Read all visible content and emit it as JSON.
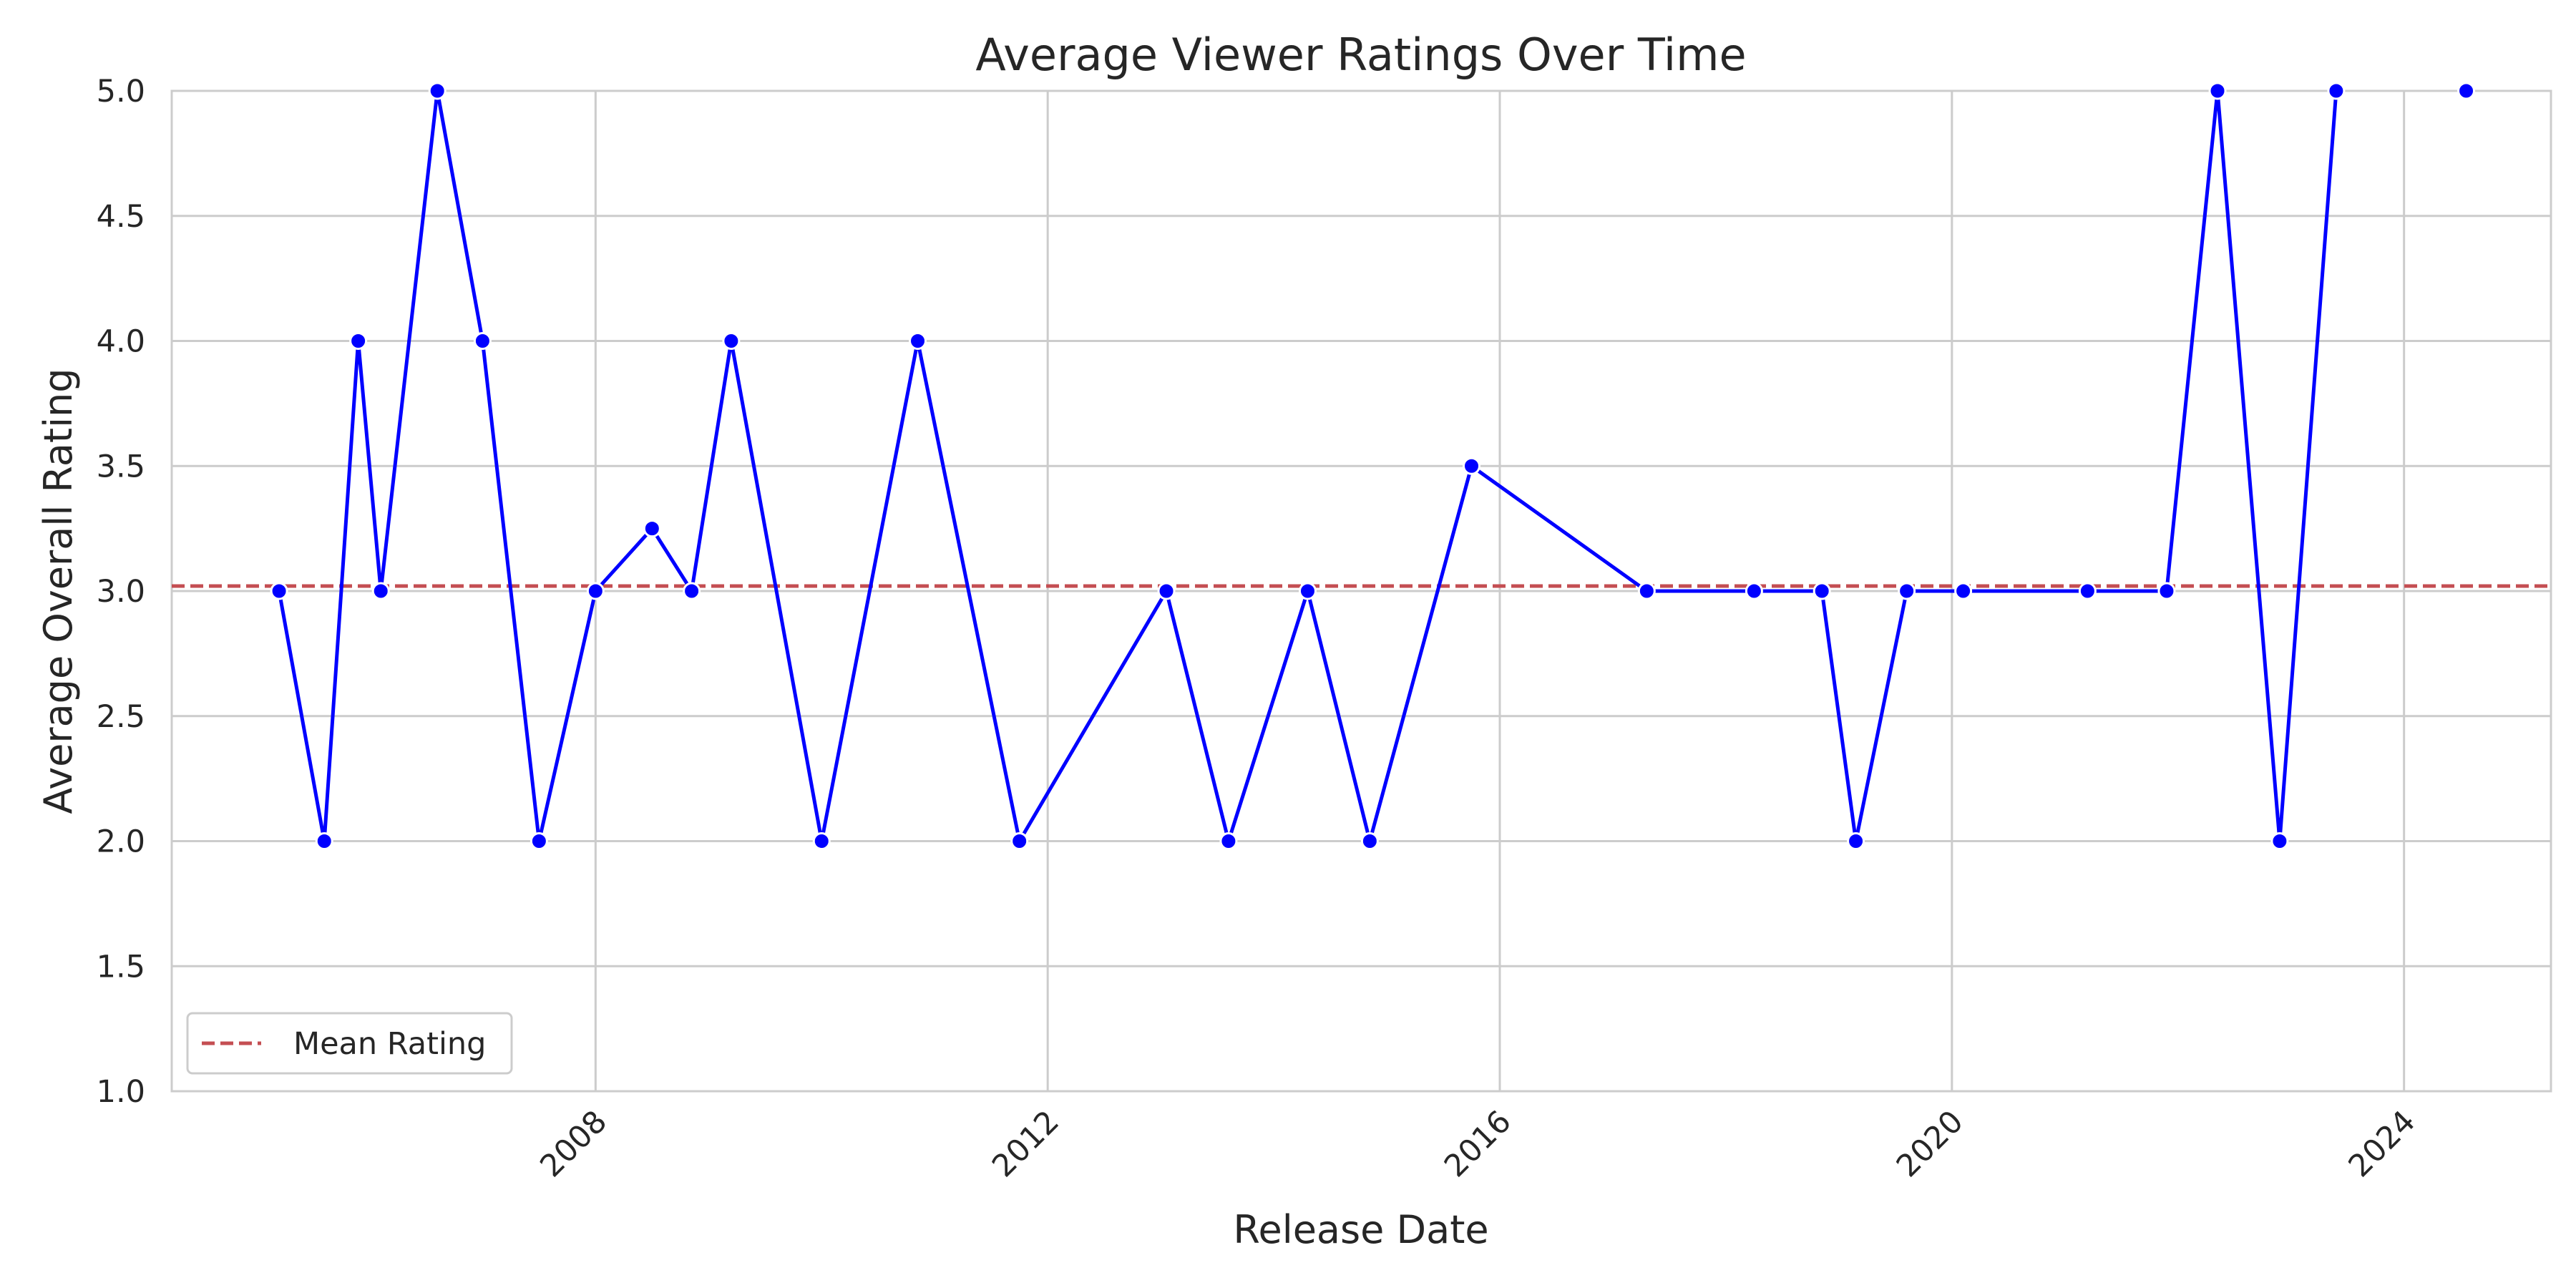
{
  "chart_data": {
    "type": "line",
    "title": "Average Viewer Ratings Over Time",
    "xlabel": "Release Date",
    "ylabel": "Average Overall Rating",
    "xlim": [
      2004.25,
      2025.3
    ],
    "ylim": [
      1.0,
      5.0
    ],
    "x_ticks": [
      2008,
      2012,
      2016,
      2020,
      2024
    ],
    "x_tick_labels": [
      "2008",
      "2012",
      "2016",
      "2020",
      "2024"
    ],
    "y_ticks": [
      1.0,
      1.5,
      2.0,
      2.5,
      3.0,
      3.5,
      4.0,
      4.5,
      5.0
    ],
    "y_tick_labels": [
      "1.0",
      "1.5",
      "2.0",
      "2.5",
      "3.0",
      "3.5",
      "4.0",
      "4.5",
      "5.0"
    ],
    "grid": true,
    "legend": {
      "location": "lower-left",
      "entries": [
        "Mean Rating"
      ]
    },
    "series": [
      {
        "name": "Average Overall Rating",
        "color": "#0000ff",
        "x": [
          2005.2,
          2005.6,
          2005.9,
          2006.1,
          2006.6,
          2007.0,
          2007.5,
          2008.0,
          2008.5,
          2008.85,
          2009.2,
          2010.0,
          2010.85,
          2011.75,
          2013.05,
          2013.6,
          2014.3,
          2014.85,
          2015.75,
          2017.3,
          2018.25,
          2018.85,
          2019.15,
          2019.6,
          2020.1,
          2021.2,
          2021.9,
          2022.35,
          2022.9,
          2023.4,
          2024.55
        ],
        "y": [
          3.0,
          2.0,
          4.0,
          3.0,
          5.0,
          4.0,
          2.0,
          3.0,
          3.25,
          3.0,
          4.0,
          2.0,
          4.0,
          2.0,
          3.0,
          2.0,
          3.0,
          2.0,
          3.5,
          3.0,
          3.0,
          3.0,
          2.0,
          3.0,
          3.0,
          3.0,
          3.0,
          5.0,
          2.0,
          5.0,
          5.0
        ],
        "connected_count": 30
      },
      {
        "name": "Mean Rating",
        "color": "#c44e52",
        "style": "dashed",
        "y_constant": 3.02
      }
    ]
  }
}
